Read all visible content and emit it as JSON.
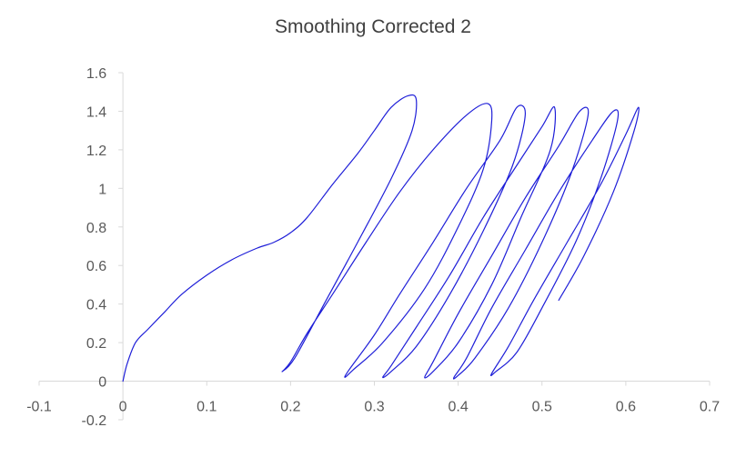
{
  "chart_data": {
    "type": "scatter",
    "title": "Smoothing Corrected 2",
    "xlabel": "",
    "ylabel": "",
    "xlim": [
      -0.1,
      0.7
    ],
    "ylim": [
      -0.2,
      1.6
    ],
    "x_ticks": [
      "-0.1",
      "0",
      "0.1",
      "0.2",
      "0.3",
      "0.4",
      "0.5",
      "0.6",
      "0.7"
    ],
    "y_ticks": [
      "1.6",
      "1.4",
      "1.2",
      "1",
      "0.8",
      "0.6",
      "0.4",
      "0.2",
      "0",
      "-0.2"
    ],
    "grid": false,
    "legend": "none",
    "line_color": "#1f1fd8",
    "series": [
      {
        "points": [
          [
            0,
            0
          ],
          [
            0.005,
            0.09
          ],
          [
            0.015,
            0.2
          ],
          [
            0.03,
            0.27
          ],
          [
            0.05,
            0.36
          ],
          [
            0.07,
            0.45
          ],
          [
            0.1,
            0.55
          ],
          [
            0.13,
            0.63
          ],
          [
            0.16,
            0.69
          ],
          [
            0.18,
            0.72
          ],
          [
            0.2,
            0.77
          ],
          [
            0.22,
            0.85
          ],
          [
            0.25,
            1.02
          ],
          [
            0.28,
            1.18
          ],
          [
            0.3,
            1.3
          ],
          [
            0.32,
            1.42
          ],
          [
            0.34,
            1.48
          ],
          [
            0.35,
            1.46
          ],
          [
            0.345,
            1.3
          ],
          [
            0.32,
            1.05
          ],
          [
            0.28,
            0.72
          ],
          [
            0.24,
            0.4
          ],
          [
            0.205,
            0.12
          ],
          [
            0.19,
            0.05
          ],
          [
            0.2,
            0.1
          ],
          [
            0.22,
            0.25
          ],
          [
            0.25,
            0.45
          ],
          [
            0.29,
            0.72
          ],
          [
            0.33,
            0.98
          ],
          [
            0.37,
            1.2
          ],
          [
            0.41,
            1.38
          ],
          [
            0.435,
            1.44
          ],
          [
            0.44,
            1.35
          ],
          [
            0.43,
            1.1
          ],
          [
            0.4,
            0.8
          ],
          [
            0.36,
            0.48
          ],
          [
            0.31,
            0.2
          ],
          [
            0.275,
            0.06
          ],
          [
            0.265,
            0.02
          ],
          [
            0.27,
            0.06
          ],
          [
            0.3,
            0.24
          ],
          [
            0.33,
            0.45
          ],
          [
            0.37,
            0.72
          ],
          [
            0.41,
            1.0
          ],
          [
            0.45,
            1.25
          ],
          [
            0.47,
            1.42
          ],
          [
            0.48,
            1.38
          ],
          [
            0.465,
            1.12
          ],
          [
            0.43,
            0.78
          ],
          [
            0.39,
            0.45
          ],
          [
            0.35,
            0.18
          ],
          [
            0.32,
            0.05
          ],
          [
            0.31,
            0.02
          ],
          [
            0.32,
            0.08
          ],
          [
            0.35,
            0.28
          ],
          [
            0.39,
            0.55
          ],
          [
            0.43,
            0.85
          ],
          [
            0.47,
            1.12
          ],
          [
            0.5,
            1.32
          ],
          [
            0.515,
            1.42
          ],
          [
            0.51,
            1.2
          ],
          [
            0.475,
            0.85
          ],
          [
            0.44,
            0.5
          ],
          [
            0.4,
            0.2
          ],
          [
            0.37,
            0.05
          ],
          [
            0.36,
            0.02
          ],
          [
            0.37,
            0.1
          ],
          [
            0.4,
            0.35
          ],
          [
            0.44,
            0.65
          ],
          [
            0.48,
            0.95
          ],
          [
            0.52,
            1.22
          ],
          [
            0.545,
            1.4
          ],
          [
            0.555,
            1.38
          ],
          [
            0.535,
            1.08
          ],
          [
            0.5,
            0.72
          ],
          [
            0.46,
            0.38
          ],
          [
            0.42,
            0.12
          ],
          [
            0.4,
            0.03
          ],
          [
            0.395,
            0.02
          ],
          [
            0.41,
            0.12
          ],
          [
            0.44,
            0.38
          ],
          [
            0.48,
            0.68
          ],
          [
            0.52,
            0.98
          ],
          [
            0.56,
            1.25
          ],
          [
            0.585,
            1.4
          ],
          [
            0.59,
            1.35
          ],
          [
            0.57,
            1.05
          ],
          [
            0.54,
            0.72
          ],
          [
            0.5,
            0.38
          ],
          [
            0.47,
            0.15
          ],
          [
            0.445,
            0.05
          ],
          [
            0.44,
            0.04
          ],
          [
            0.46,
            0.18
          ],
          [
            0.49,
            0.42
          ],
          [
            0.53,
            0.72
          ],
          [
            0.57,
            1.02
          ],
          [
            0.6,
            1.28
          ],
          [
            0.615,
            1.42
          ],
          [
            0.61,
            1.3
          ],
          [
            0.585,
            0.98
          ],
          [
            0.55,
            0.65
          ],
          [
            0.52,
            0.42
          ]
        ]
      }
    ]
  }
}
